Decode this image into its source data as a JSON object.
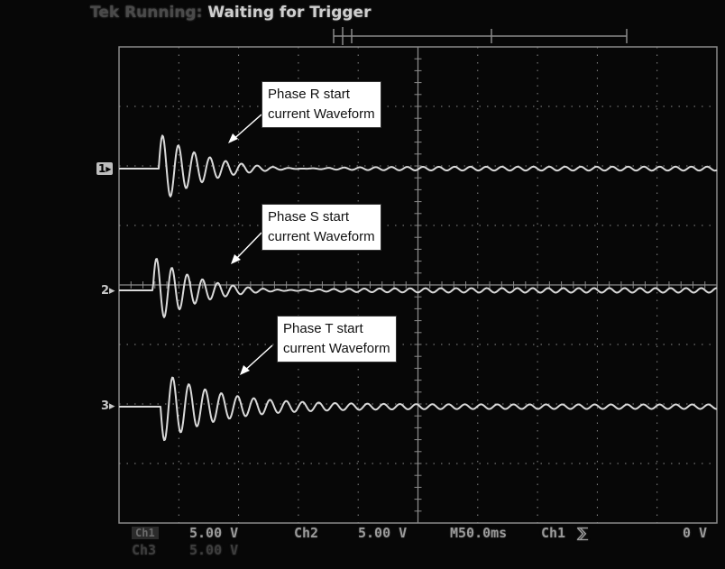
{
  "status": {
    "prefix": "Tek Running:",
    "text": "Waiting for Trigger"
  },
  "callouts": [
    {
      "line1": "Phase R start",
      "line2": "current Waveform"
    },
    {
      "line1": "Phase S start",
      "line2": "current Waveform"
    },
    {
      "line1": "Phase T start",
      "line2": "current Waveform"
    }
  ],
  "channel_markers": {
    "ch1": "1",
    "ch2": "2",
    "ch3": "3"
  },
  "readouts": {
    "ch1_box": "Ch1",
    "ch1_scale": "5.00 V",
    "ch3_box": "Ch3",
    "ch3_scale": "5.00 V",
    "ch2_label": "Ch2",
    "ch2_scale": "5.00 V",
    "timebase": "M50.0ms",
    "trigger_source": "Ch1",
    "trigger_slope": "⅀",
    "trigger_level": "0 V"
  },
  "colors": {
    "trace": "#d9d9d9",
    "grid": "#8a8a8a",
    "background": "#070707",
    "callout_bg": "#ffffff"
  }
}
